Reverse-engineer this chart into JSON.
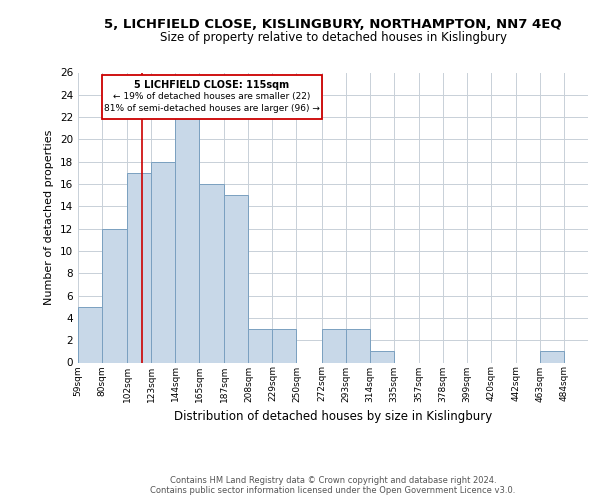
{
  "title": "5, LICHFIELD CLOSE, KISLINGBURY, NORTHAMPTON, NN7 4EQ",
  "subtitle": "Size of property relative to detached houses in Kislingbury",
  "xlabel": "Distribution of detached houses by size in Kislingbury",
  "ylabel": "Number of detached properties",
  "bar_color": "#c8d8e8",
  "bar_edge_color": "#7aa0c0",
  "grid_color": "#c8d0d8",
  "reference_line_x": 115,
  "reference_line_color": "#cc0000",
  "bin_edges": [
    59,
    80,
    102,
    123,
    144,
    165,
    187,
    208,
    229,
    250,
    272,
    293,
    314,
    335,
    357,
    378,
    399,
    420,
    442,
    463,
    484,
    505
  ],
  "bin_labels": [
    "59sqm",
    "80sqm",
    "102sqm",
    "123sqm",
    "144sqm",
    "165sqm",
    "187sqm",
    "208sqm",
    "229sqm",
    "250sqm",
    "272sqm",
    "293sqm",
    "314sqm",
    "335sqm",
    "357sqm",
    "378sqm",
    "399sqm",
    "420sqm",
    "442sqm",
    "463sqm",
    "484sqm"
  ],
  "counts": [
    5,
    12,
    17,
    18,
    22,
    16,
    15,
    3,
    3,
    0,
    3,
    3,
    1,
    0,
    0,
    0,
    0,
    0,
    0,
    1,
    0
  ],
  "ylim": [
    0,
    26
  ],
  "yticks": [
    0,
    2,
    4,
    6,
    8,
    10,
    12,
    14,
    16,
    18,
    20,
    22,
    24,
    26
  ],
  "annotation_title": "5 LICHFIELD CLOSE: 115sqm",
  "annotation_line1": "← 19% of detached houses are smaller (22)",
  "annotation_line2": "81% of semi-detached houses are larger (96) →",
  "annotation_box_color": "#ffffff",
  "annotation_box_edge": "#cc0000",
  "footer1": "Contains HM Land Registry data © Crown copyright and database right 2024.",
  "footer2": "Contains public sector information licensed under the Open Government Licence v3.0."
}
